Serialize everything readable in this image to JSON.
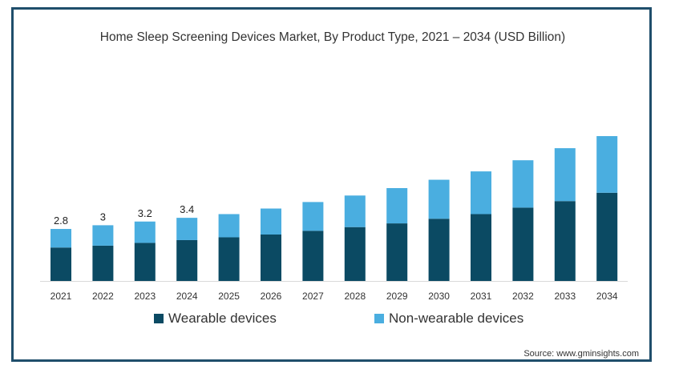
{
  "chart_data": {
    "type": "bar",
    "stacked": true,
    "title": "Home Sleep Screening Devices Market, By Product Type, 2021 – 2034 (USD Billion)",
    "categories": [
      "2021",
      "2022",
      "2023",
      "2024",
      "2025",
      "2026",
      "2027",
      "2028",
      "2029",
      "2030",
      "2031",
      "2032",
      "2033",
      "2034"
    ],
    "series": [
      {
        "name": "Wearable devices",
        "color": "#0b4a63",
        "values": [
          1.8,
          1.9,
          2.05,
          2.2,
          2.35,
          2.5,
          2.7,
          2.9,
          3.1,
          3.35,
          3.6,
          3.95,
          4.3,
          4.75
        ]
      },
      {
        "name": "Non-wearable devices",
        "color": "#4aaee0",
        "values": [
          1.0,
          1.1,
          1.15,
          1.2,
          1.25,
          1.4,
          1.55,
          1.7,
          1.9,
          2.1,
          2.3,
          2.55,
          2.85,
          3.05
        ]
      }
    ],
    "total_labels": [
      "2.8",
      "3",
      "3.2",
      "3.4",
      "",
      "",
      "",
      "",
      "",
      "",
      "",
      "",
      "",
      ""
    ],
    "ylim": [
      0,
      9
    ],
    "grid": false,
    "legend_position": "bottom"
  },
  "source": "Source: www.gminsights.com"
}
